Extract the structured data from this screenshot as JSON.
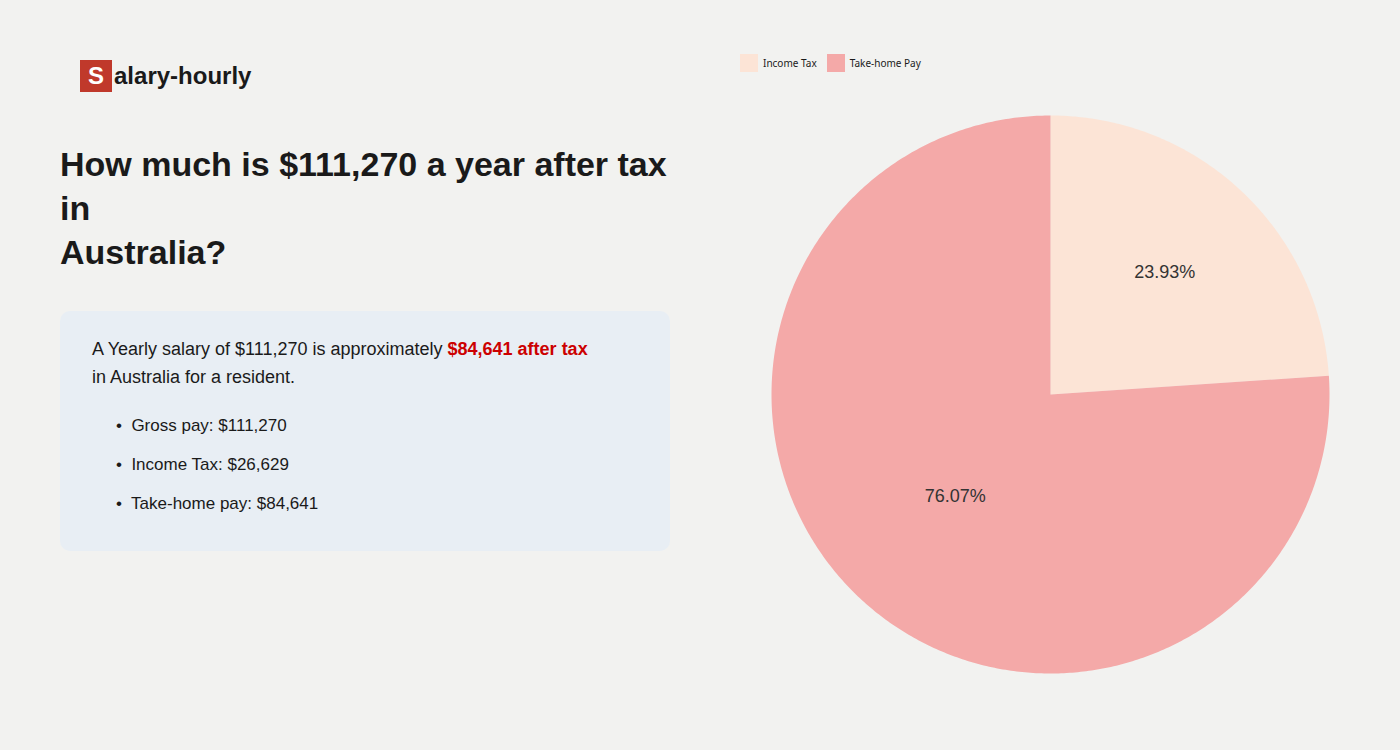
{
  "chart_data": {
    "type": "pie",
    "title": "How much is $111,270 a year after tax in\nAustralia?",
    "annotations": [
      "S",
      "alary-hourly",
      "A Yearly salary of $111,270 is approximately ",
      "$84,641 after tax",
      "in Australia for a resident.",
      "•  Gross pay: $111,270",
      "•  Income Tax: $26,629",
      "•  Take-home pay: $84,641"
    ],
    "categories": [
      "Income Tax",
      "Take-home Pay"
    ],
    "values": [
      23.93,
      76.07
    ],
    "value_labels": [
      "23.93%",
      "76.07%"
    ],
    "colors": [
      "#fce4d6",
      "#f4a9a8"
    ],
    "data_labels": true,
    "legend": "top"
  }
}
